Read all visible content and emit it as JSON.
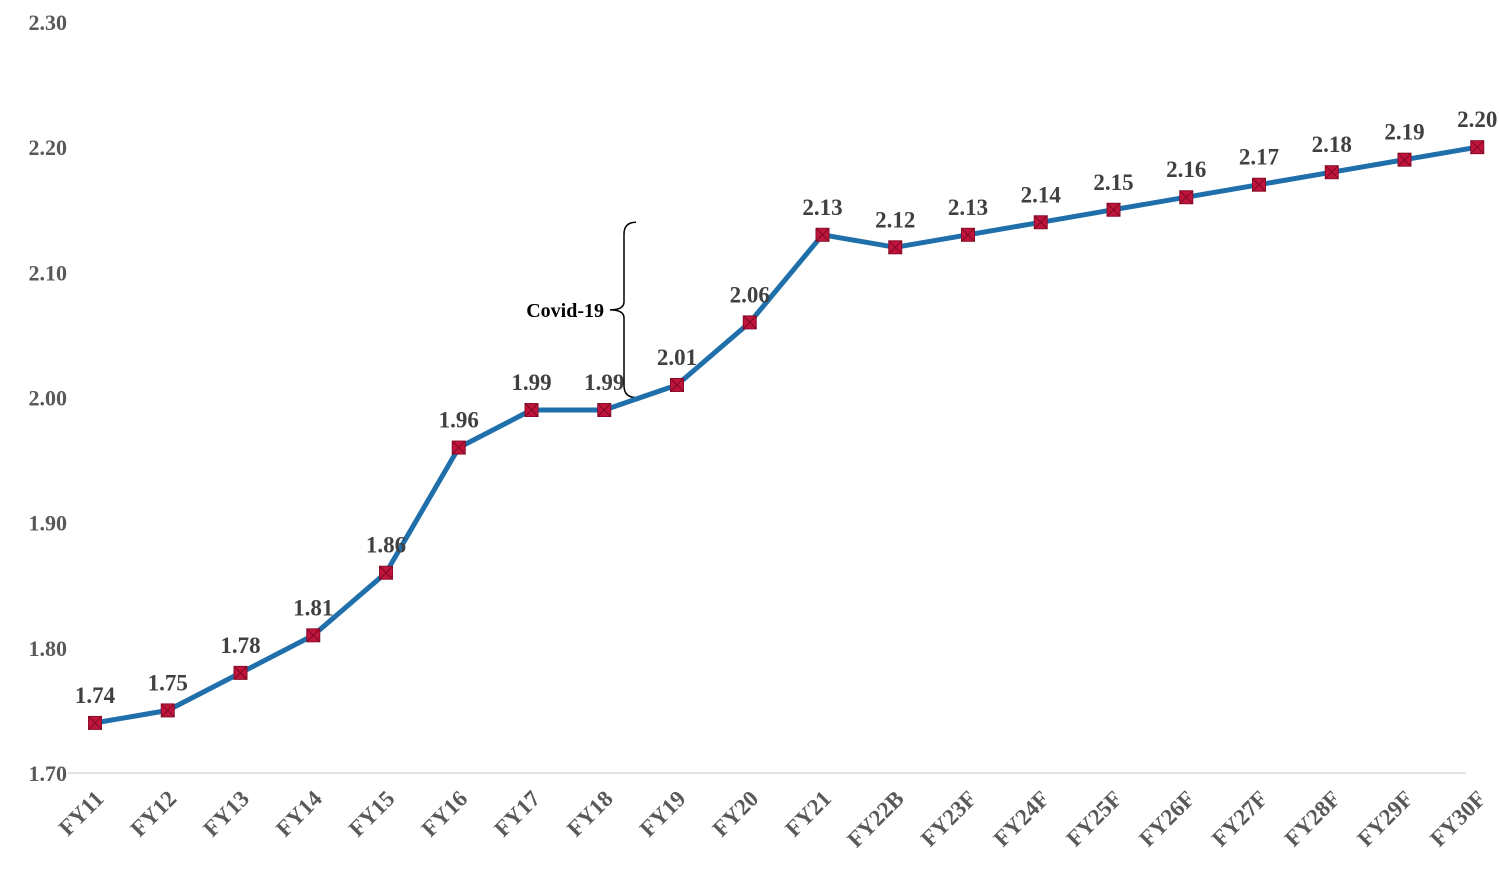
{
  "chart_data": {
    "type": "line",
    "title": "",
    "xlabel": "",
    "ylabel": "",
    "categories": [
      "FY11",
      "FY12",
      "FY13",
      "FY14",
      "FY15",
      "FY16",
      "FY17",
      "FY18",
      "FY19",
      "FY20",
      "FY21",
      "FY22B",
      "FY23F",
      "FY24F",
      "FY25F",
      "FY26F",
      "FY27F",
      "FY28F",
      "FY29F",
      "FY30F"
    ],
    "series": [
      {
        "values": [
          1.74,
          1.75,
          1.78,
          1.81,
          1.86,
          1.96,
          1.99,
          1.99,
          2.01,
          2.06,
          2.13,
          2.12,
          2.13,
          2.14,
          2.15,
          2.16,
          2.17,
          2.18,
          2.19,
          2.2
        ],
        "labels": [
          "1.74",
          "1.75",
          "1.78",
          "1.81",
          "1.86",
          "1.96",
          "1.99",
          "1.99",
          "2.01",
          "2.06",
          "2.13",
          "2.12",
          "2.13",
          "2.14",
          "2.15",
          "2.16",
          "2.17",
          "2.18",
          "2.19",
          "2.20"
        ]
      }
    ],
    "ylim": [
      1.7,
      2.3
    ],
    "yticks": [
      "1.70",
      "1.80",
      "1.90",
      "2.00",
      "2.10",
      "2.20",
      "2.30"
    ],
    "grid": false,
    "legend": "none",
    "annotations": [
      {
        "text": "Covid-19",
        "bracket_from": 2.0,
        "bracket_to": 2.14
      }
    ],
    "colors": {
      "line": "#1f6fab",
      "marker": "#c0143c",
      "axis": "#d9d9d9"
    }
  }
}
